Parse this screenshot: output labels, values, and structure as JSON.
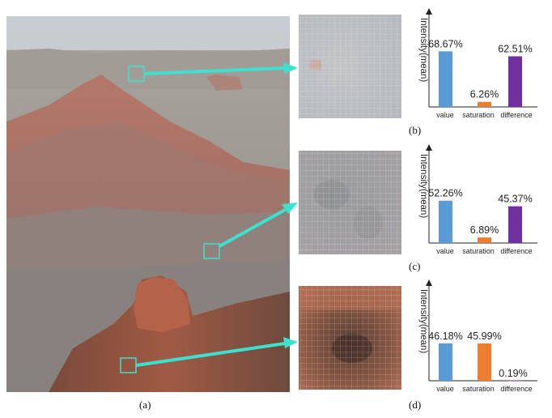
{
  "panel_labels": {
    "a": "(a)",
    "b": "(b)",
    "c": "(c)",
    "d": "(d)"
  },
  "colors": {
    "value": "#5b9bd5",
    "saturation": "#ed7d31",
    "difference": "#7030a0",
    "connector": "#3ee0cf"
  },
  "chart_data": [
    {
      "type": "bar",
      "panel": "(b)",
      "ylabel": "Intensity(mean)",
      "categories": [
        "value",
        "saturation",
        "difference"
      ],
      "values": [
        68.67,
        6.26,
        62.51
      ],
      "value_labels": [
        "68.67%",
        "6.26%",
        "62.51%"
      ],
      "ylim": [
        0,
        100
      ],
      "grid": false
    },
    {
      "type": "bar",
      "panel": "(c)",
      "ylabel": "Intensity(mean)",
      "categories": [
        "value",
        "saturation",
        "difference"
      ],
      "values": [
        52.26,
        6.89,
        45.37
      ],
      "value_labels": [
        "52.26%",
        "6.89%",
        "45.37%"
      ],
      "ylim": [
        0,
        100
      ],
      "grid": false
    },
    {
      "type": "bar",
      "panel": "(d)",
      "ylabel": "Intensity(mean)",
      "categories": [
        "value",
        "saturation",
        "difference"
      ],
      "values": [
        46.18,
        45.99,
        0.19
      ],
      "value_labels": [
        "46.18%",
        "45.99%",
        "0.19%"
      ],
      "ylim": [
        0,
        100
      ],
      "grid": false
    }
  ]
}
